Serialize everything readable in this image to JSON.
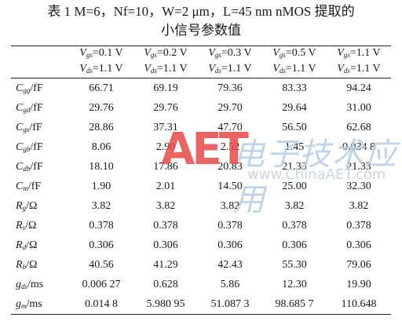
{
  "caption": {
    "line1": "表 1  M=6，Nf=10，W=2 μm，L=45 nm nMOS 提取的",
    "line2": "小信号参数值"
  },
  "table": {
    "headers": [
      {
        "vgs": "Vgs=0.1 V",
        "vds": "Vds=1.1 V"
      },
      {
        "vgs": "Vgs=0.2 V",
        "vds": "Vds=1.1 V"
      },
      {
        "vgs": "Vgs=0.3 V",
        "vds": "Vds=1.1 V"
      },
      {
        "vgs": "Vgs=0.5 V",
        "vds": "Vds=1.1 V"
      },
      {
        "vgs": "Vgs=1.1 V",
        "vds": "Vds=1.1 V"
      }
    ],
    "rows": [
      {
        "param": "Cgg/fF",
        "values": [
          "66.71",
          "69.19",
          "79.36",
          "83.33",
          "94.24"
        ]
      },
      {
        "param": "Cgd/fF",
        "values": [
          "29.76",
          "29.76",
          "29.70",
          "29.64",
          "31.00"
        ]
      },
      {
        "param": "Cgs/fF",
        "values": [
          "28.86",
          "37.31",
          "47.70",
          "56.50",
          "62.68"
        ]
      },
      {
        "param": "Cgb/fF",
        "values": [
          "8.06",
          "2.90",
          "2.52",
          "1.45",
          "0.034 8"
        ]
      },
      {
        "param": "Cdb/fF",
        "values": [
          "18.10",
          "17.86",
          "20.83",
          "21.33",
          "21.33"
        ]
      },
      {
        "param": "Cm/fF",
        "values": [
          "1.90",
          "2.01",
          "14.50",
          "25.00",
          "32.30"
        ]
      },
      {
        "param": "Rg/Ω",
        "values": [
          "3.82",
          "3.82",
          "3.82",
          "3.82",
          "3.82"
        ]
      },
      {
        "param": "Rs/Ω",
        "values": [
          "0.378",
          "0.378",
          "0.378",
          "0.378",
          "0.378"
        ]
      },
      {
        "param": "Rd/Ω",
        "values": [
          "0.306",
          "0.306",
          "0.306",
          "0.306",
          "0.306"
        ]
      },
      {
        "param": "Rb/Ω",
        "values": [
          "40.56",
          "41.29",
          "42.43",
          "55.30",
          "79.06"
        ]
      },
      {
        "param": "gds/ms",
        "values": [
          "0.006 27",
          "0.628",
          "5.86",
          "12.30",
          "19.90"
        ]
      },
      {
        "param": "gm/ms",
        "values": [
          "0.014 8",
          "5.980 95",
          "51.087 3",
          "98.685 7",
          "110.648"
        ]
      }
    ]
  },
  "watermark": {
    "logo": "AET",
    "chinese": "电子技术应用",
    "url": "www.ChinaAET.com"
  }
}
